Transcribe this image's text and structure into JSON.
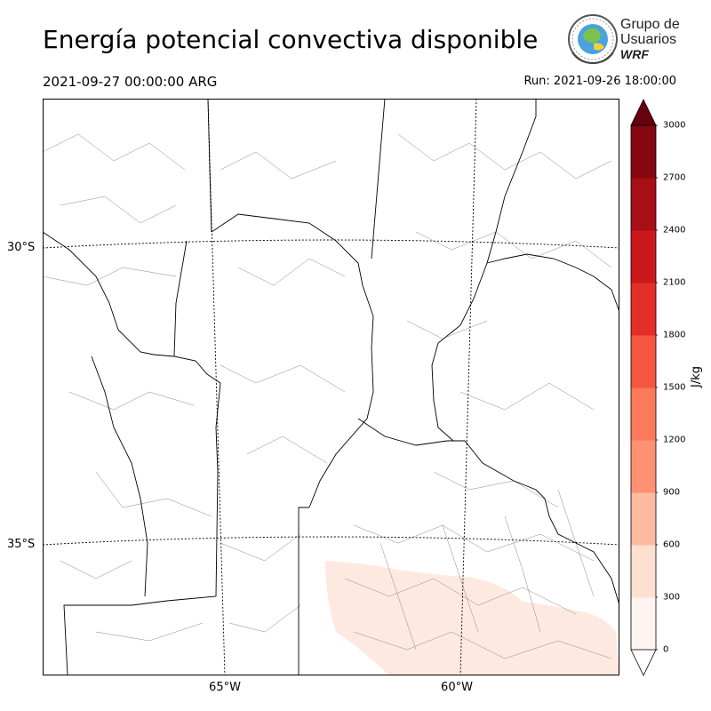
{
  "header": {
    "title": "Energía potencial convectiva disponible",
    "valid_time": "2021-09-27 00:00:00 ARG",
    "run_time": "Run: 2021-09-26 18:00:00"
  },
  "logo": {
    "line1": "Grupo de",
    "line2": "Usuarios",
    "line3": "WRF"
  },
  "map": {
    "lat_labels": [
      "30°S",
      "35°S"
    ],
    "lon_labels": [
      "65°W",
      "60°W"
    ],
    "field_color": "#fee8de",
    "border_color": "#000000",
    "district_color": "#888888"
  },
  "colorbar": {
    "unit": "J/kg",
    "ticks": [
      "0",
      "300",
      "600",
      "900",
      "1200",
      "1500",
      "1800",
      "2100",
      "2400",
      "2700",
      "3000"
    ],
    "colors": [
      "#fff5f0",
      "#fee0d2",
      "#fcbba1",
      "#fc9272",
      "#fb7a5a",
      "#f6553f",
      "#e32f27",
      "#cb181d",
      "#a50f15",
      "#840711",
      "#67000d"
    ],
    "under_color": "#ffffff",
    "over_color": "#67000d"
  }
}
